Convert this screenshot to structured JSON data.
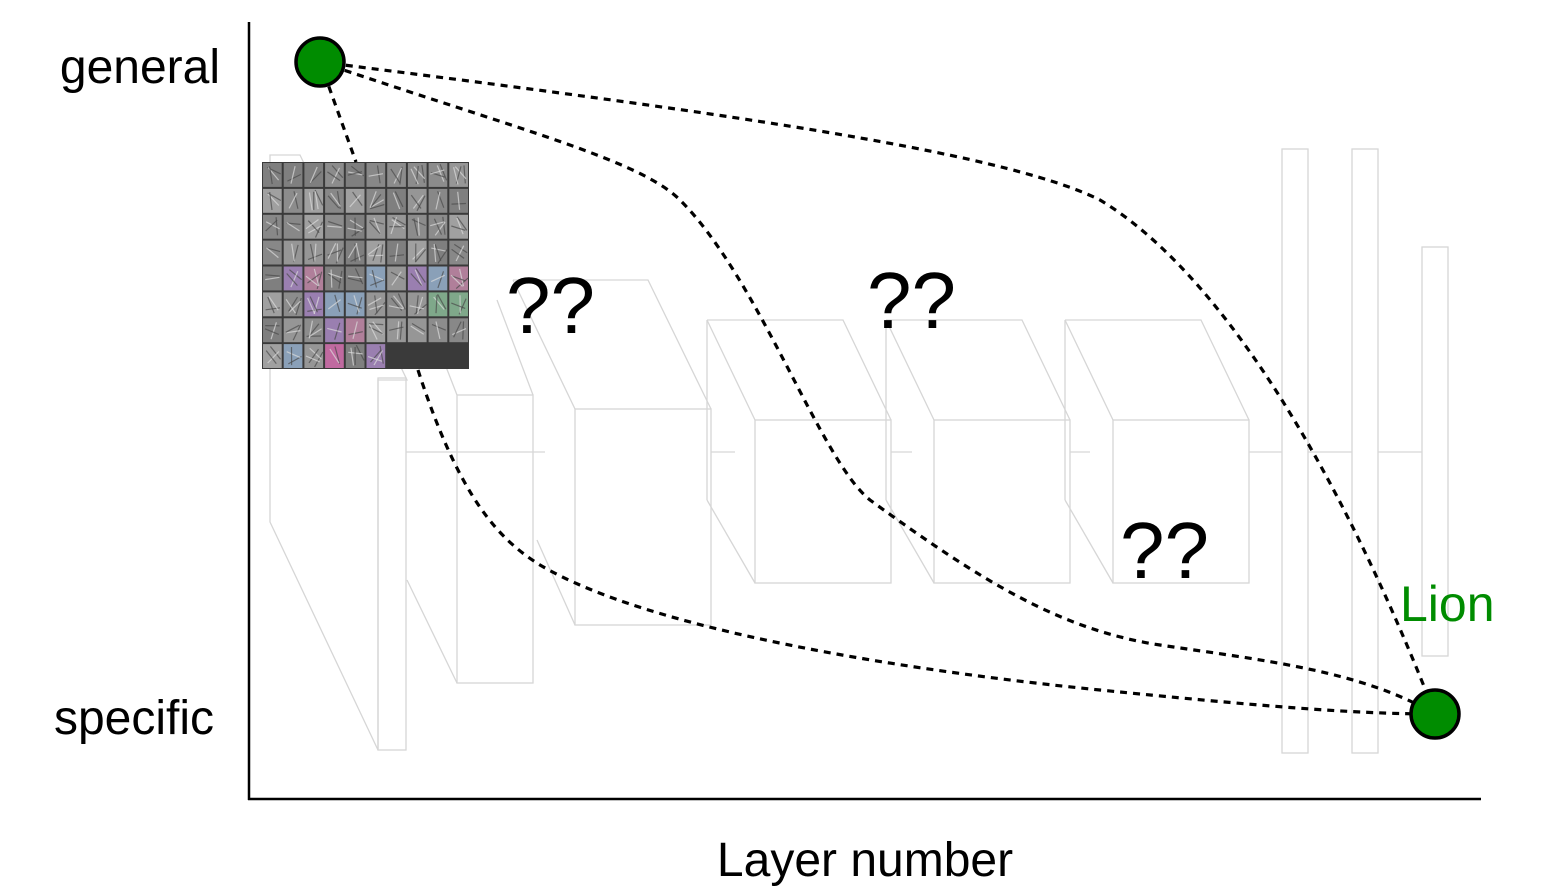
{
  "diagram": {
    "y_axis": {
      "top_label": "general",
      "bottom_label": "specific"
    },
    "x_axis": {
      "label": "Layer number"
    },
    "question_marks": [
      "??",
      "??",
      "??"
    ],
    "endpoint_label": "Lion",
    "colors": {
      "node": "#008c00",
      "endpoint_label": "#008c00",
      "layer_outline": "#d6d6d6",
      "curves": "#000000"
    },
    "filter_thumbnail": {
      "rows": 8,
      "cols": 10
    }
  }
}
